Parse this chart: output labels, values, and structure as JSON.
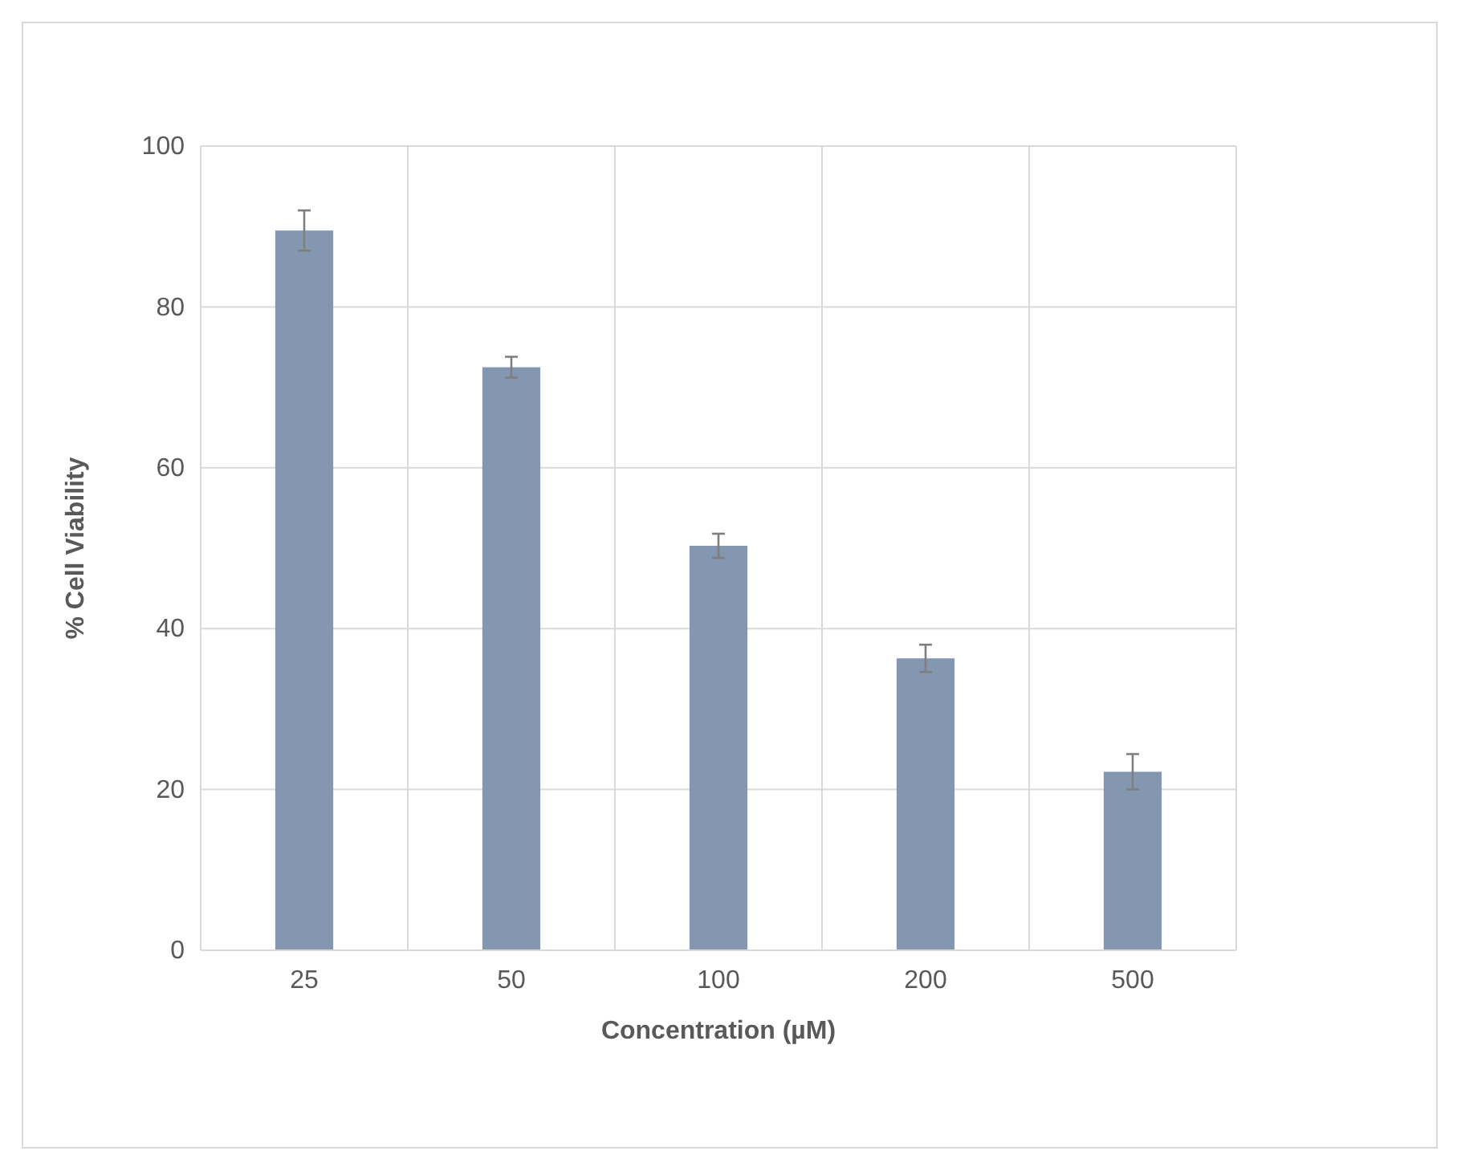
{
  "chart_data": {
    "type": "bar",
    "xlabel": "Concentration (µM)",
    "ylabel": "% Cell Viability",
    "categories": [
      "25",
      "50",
      "100",
      "200",
      "500"
    ],
    "values": [
      89.5,
      72.5,
      50.3,
      36.3,
      22.2
    ],
    "errors": [
      2.5,
      1.3,
      1.5,
      1.7,
      2.2
    ],
    "color": "#8497b0",
    "ylim": [
      0,
      100
    ],
    "yticks": [
      0,
      20,
      40,
      60,
      80,
      100
    ],
    "grid": true
  }
}
